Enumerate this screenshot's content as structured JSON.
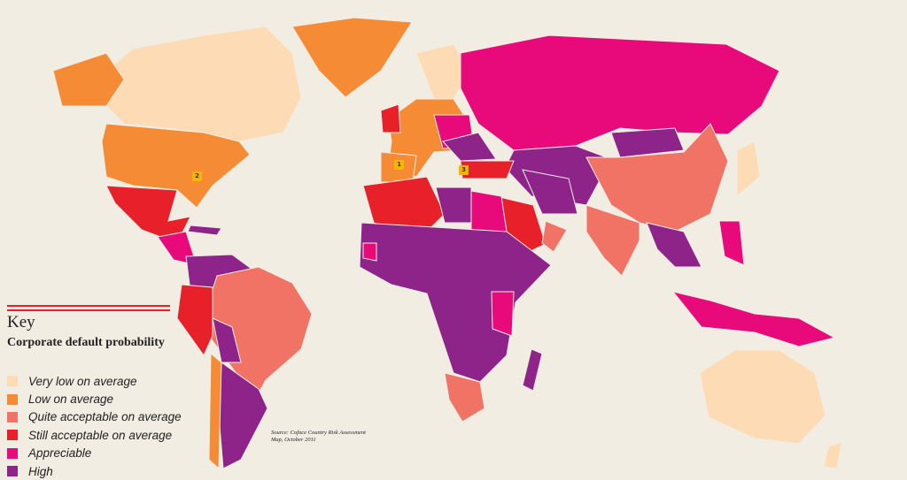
{
  "key": {
    "title": "Key",
    "subtitle": "Corporate default probability",
    "items": [
      {
        "label": "Very low on average",
        "color": "#fddcb5"
      },
      {
        "label": "Low on average",
        "color": "#f58b34"
      },
      {
        "label": "Quite acceptable on average",
        "color": "#f07366"
      },
      {
        "label": "Still acceptable on average",
        "color": "#e8202a"
      },
      {
        "label": "Appreciable",
        "color": "#e8097a"
      },
      {
        "label": "High",
        "color": "#8e238a"
      }
    ]
  },
  "source": "Source: Coface Country Risk Assessment Map, October 2011",
  "markers": [
    "1",
    "2",
    "3"
  ],
  "background_color": "#f2ede3"
}
